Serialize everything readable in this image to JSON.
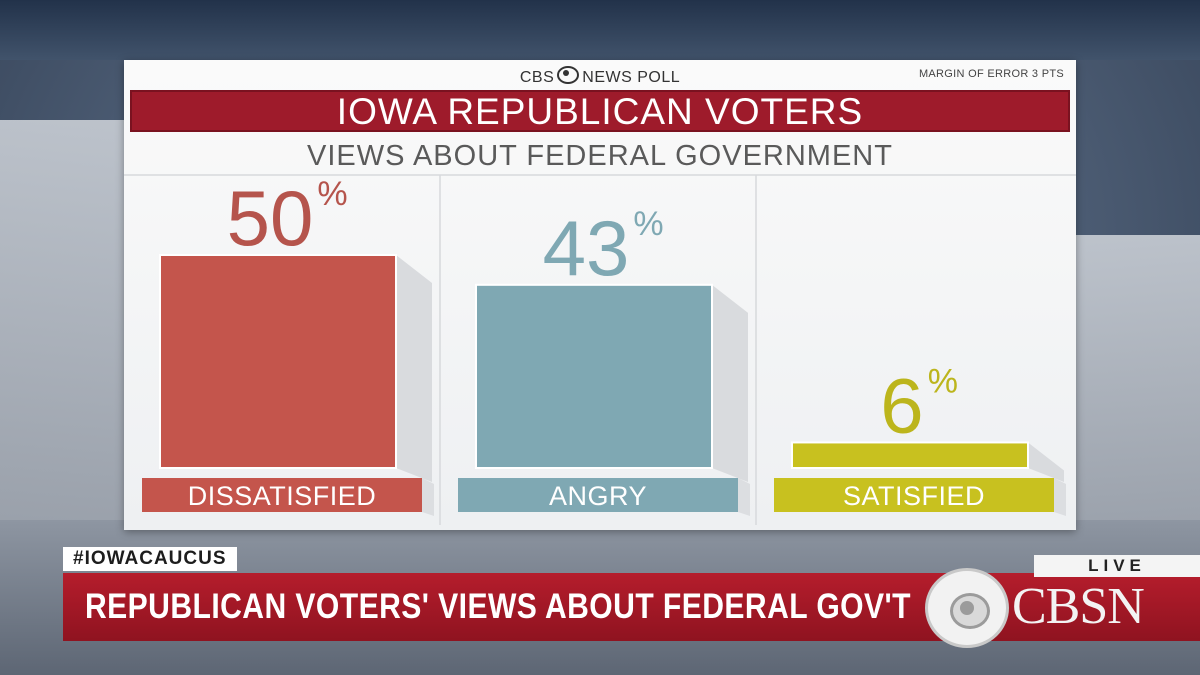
{
  "brand": {
    "left": "CBS",
    "right": "NEWS POLL"
  },
  "margin_of_error": "MARGIN OF ERROR 3 PTS",
  "title": "IOWA REPUBLICAN VOTERS",
  "subtitle": "VIEWS ABOUT FEDERAL GOVERNMENT",
  "chart_data": {
    "type": "bar",
    "title": "IOWA REPUBLICAN VOTERS",
    "subtitle": "VIEWS ABOUT FEDERAL GOVERNMENT",
    "categories": [
      "DISSATISFIED",
      "ANGRY",
      "SATISFIED"
    ],
    "values": [
      50,
      43,
      6
    ],
    "unit": "%",
    "colors": [
      "#c4554c",
      "#7fa8b3",
      "#c8c11f"
    ],
    "value_colors": [
      "#b5544c",
      "#7fa8b3",
      "#bcb51c"
    ],
    "label_colors": [
      "#c4554c",
      "#7fa8b3",
      "#c8c11f"
    ],
    "ylim": [
      0,
      50
    ],
    "xlabel": "",
    "ylabel": ""
  },
  "lower_third": {
    "hashtag": "#IOWACAUCUS",
    "headline": "REPUBLICAN VOTERS' VIEWS ABOUT FEDERAL GOV'T",
    "live": "LIVE",
    "network": "CBSN"
  }
}
